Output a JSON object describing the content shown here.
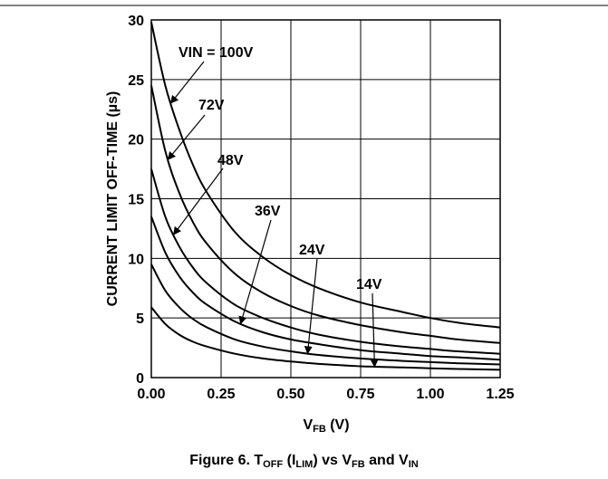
{
  "chart_data": {
    "type": "line",
    "xlabel_main": "V",
    "xlabel_sub": "FB",
    "xlabel_unit": " (V)",
    "ylabel": "CURRENT LIMIT OFF-TIME (µs)",
    "xlim": [
      0,
      1.25
    ],
    "ylim": [
      0,
      30
    ],
    "x_ticks": [
      "0.00",
      "0.25",
      "0.50",
      "0.75",
      "1.00",
      "1.25"
    ],
    "x_tick_values": [
      0,
      0.25,
      0.5,
      0.75,
      1.0,
      1.25
    ],
    "y_ticks": [
      "0",
      "5",
      "10",
      "15",
      "20",
      "25",
      "30"
    ],
    "y_tick_values": [
      0,
      5,
      10,
      15,
      20,
      25,
      30
    ],
    "grid": true,
    "series": [
      {
        "name": "VIN = 100V",
        "x": [
          0,
          0.05,
          0.1,
          0.15,
          0.2,
          0.3,
          0.4,
          0.5,
          0.6,
          0.75,
          0.9,
          1.0,
          1.1,
          1.25
        ],
        "y": [
          29.8,
          24.5,
          20.8,
          17.8,
          15.5,
          12.2,
          10.1,
          8.6,
          7.5,
          6.3,
          5.5,
          5.0,
          4.6,
          4.2
        ]
      },
      {
        "name": "72V",
        "x": [
          0,
          0.05,
          0.1,
          0.15,
          0.2,
          0.3,
          0.4,
          0.5,
          0.6,
          0.75,
          0.9,
          1.0,
          1.1,
          1.25
        ],
        "y": [
          24.5,
          19.0,
          15.5,
          13.0,
          11.2,
          8.7,
          7.1,
          6.0,
          5.2,
          4.4,
          3.8,
          3.5,
          3.2,
          2.9
        ]
      },
      {
        "name": "48V",
        "x": [
          0,
          0.05,
          0.1,
          0.15,
          0.2,
          0.3,
          0.4,
          0.5,
          0.6,
          0.75,
          0.9,
          1.0,
          1.1,
          1.25
        ],
        "y": [
          17.5,
          13.5,
          11.0,
          9.2,
          7.9,
          6.1,
          5.0,
          4.2,
          3.6,
          3.0,
          2.6,
          2.4,
          2.2,
          2.0
        ]
      },
      {
        "name": "36V",
        "x": [
          0,
          0.05,
          0.1,
          0.15,
          0.2,
          0.3,
          0.4,
          0.5,
          0.6,
          0.75,
          0.9,
          1.0,
          1.1,
          1.25
        ],
        "y": [
          13.5,
          10.5,
          8.5,
          7.1,
          6.1,
          4.7,
          3.8,
          3.2,
          2.8,
          2.3,
          2.0,
          1.8,
          1.7,
          1.5
        ]
      },
      {
        "name": "24V",
        "x": [
          0,
          0.05,
          0.1,
          0.15,
          0.2,
          0.3,
          0.4,
          0.5,
          0.6,
          0.75,
          0.9,
          1.0,
          1.1,
          1.25
        ],
        "y": [
          9.5,
          7.3,
          5.9,
          4.9,
          4.2,
          3.2,
          2.6,
          2.2,
          1.9,
          1.6,
          1.4,
          1.3,
          1.2,
          1.1
        ]
      },
      {
        "name": "14V",
        "x": [
          0,
          0.05,
          0.1,
          0.15,
          0.2,
          0.3,
          0.4,
          0.5,
          0.6,
          0.75,
          0.9,
          1.0,
          1.1,
          1.25
        ],
        "y": [
          5.9,
          4.5,
          3.6,
          3.0,
          2.6,
          2.0,
          1.6,
          1.35,
          1.15,
          0.95,
          0.85,
          0.78,
          0.72,
          0.65
        ]
      }
    ],
    "annotations": [
      {
        "text": "VIN = 100V",
        "series": 0,
        "at_x": 0.07
      },
      {
        "text": "72V",
        "series": 1,
        "at_x": 0.06
      },
      {
        "text": "48V",
        "series": 2,
        "at_x": 0.08
      },
      {
        "text": "36V",
        "series": 3,
        "at_x": 0.32
      },
      {
        "text": "24V",
        "series": 4,
        "at_x": 0.56
      },
      {
        "text": "14V",
        "series": 5,
        "at_x": 0.8
      }
    ],
    "caption": {
      "prefix": "Figure 6. T",
      "sub1": "OFF",
      "mid1": " (I",
      "sub2": "LIM",
      "mid2": ") vs V",
      "sub3": "FB",
      "mid3": " and V",
      "sub4": "IN"
    }
  }
}
